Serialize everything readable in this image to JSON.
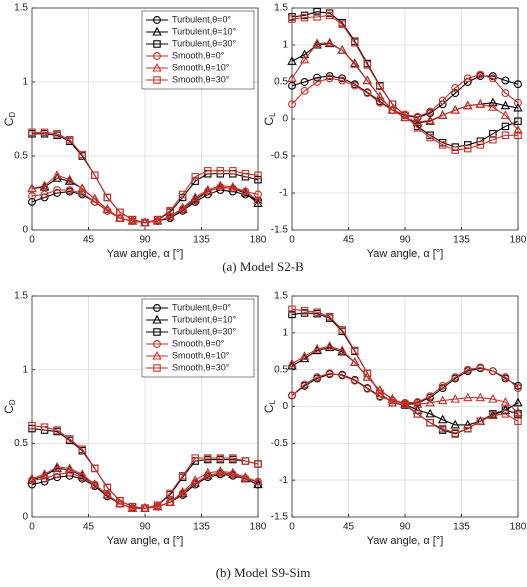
{
  "chart_data": [
    {
      "type": "line",
      "ylabel": {
        "base": "C",
        "sub": "D"
      },
      "xlabel": "Yaw angle, α [°]",
      "x": [
        0,
        10,
        20,
        30,
        40,
        50,
        60,
        70,
        80,
        90,
        100,
        110,
        120,
        130,
        140,
        150,
        160,
        170,
        180
      ],
      "xlim": [
        0,
        180
      ],
      "xticks": [
        0,
        45,
        90,
        135,
        180
      ],
      "ylim": [
        0,
        1.5
      ],
      "yticks": [
        0,
        0.5,
        1,
        1.5
      ],
      "grid": true,
      "legend": "northeast",
      "series": [
        {
          "name": "Turbulent,θ=0°",
          "color": "#000000",
          "marker": "o",
          "values": [
            0.19,
            0.22,
            0.25,
            0.26,
            0.24,
            0.19,
            0.13,
            0.08,
            0.06,
            0.05,
            0.06,
            0.08,
            0.13,
            0.19,
            0.24,
            0.27,
            0.26,
            0.24,
            0.2
          ]
        },
        {
          "name": "Turbulent,θ=10°",
          "color": "#000000",
          "marker": "^",
          "values": [
            0.28,
            0.29,
            0.35,
            0.33,
            0.28,
            0.21,
            0.14,
            0.08,
            0.06,
            0.05,
            0.06,
            0.09,
            0.14,
            0.21,
            0.26,
            0.29,
            0.28,
            0.25,
            0.18
          ]
        },
        {
          "name": "Turbulent,θ=30°",
          "color": "#000000",
          "marker": "s",
          "values": [
            0.65,
            0.65,
            0.64,
            0.6,
            0.5,
            0.37,
            0.22,
            0.12,
            0.07,
            0.05,
            0.07,
            0.12,
            0.22,
            0.33,
            0.38,
            0.38,
            0.38,
            0.36,
            0.34
          ]
        },
        {
          "name": "Smooth,θ=0°",
          "color": "#c8322a",
          "marker": "o",
          "values": [
            0.23,
            0.24,
            0.27,
            0.27,
            0.25,
            0.19,
            0.13,
            0.08,
            0.06,
            0.05,
            0.06,
            0.09,
            0.14,
            0.2,
            0.26,
            0.29,
            0.28,
            0.26,
            0.24
          ]
        },
        {
          "name": "Smooth,θ=10°",
          "color": "#c8322a",
          "marker": "^",
          "values": [
            0.28,
            0.3,
            0.37,
            0.34,
            0.28,
            0.21,
            0.14,
            0.08,
            0.06,
            0.05,
            0.06,
            0.09,
            0.15,
            0.22,
            0.27,
            0.3,
            0.29,
            0.26,
            0.2
          ]
        },
        {
          "name": "Smooth,θ=30°",
          "color": "#c8322a",
          "marker": "s",
          "values": [
            0.66,
            0.66,
            0.65,
            0.61,
            0.51,
            0.37,
            0.22,
            0.12,
            0.07,
            0.05,
            0.07,
            0.13,
            0.24,
            0.36,
            0.4,
            0.4,
            0.4,
            0.38,
            0.37
          ]
        }
      ]
    },
    {
      "type": "line",
      "ylabel": {
        "base": "C",
        "sub": "L"
      },
      "xlabel": "Yaw angle, α [°]",
      "x": [
        0,
        10,
        20,
        30,
        40,
        50,
        60,
        70,
        80,
        90,
        100,
        110,
        120,
        130,
        140,
        150,
        160,
        170,
        180
      ],
      "xlim": [
        0,
        180
      ],
      "xticks": [
        0,
        45,
        90,
        135,
        180
      ],
      "ylim": [
        -1.5,
        1.5
      ],
      "yticks": [
        -1.5,
        -1,
        -0.5,
        0,
        0.5,
        1,
        1.5
      ],
      "grid": true,
      "series": [
        {
          "color": "#000000",
          "marker": "o",
          "values": [
            0.45,
            0.5,
            0.56,
            0.58,
            0.55,
            0.47,
            0.36,
            0.24,
            0.12,
            0.05,
            0.02,
            0.08,
            0.2,
            0.35,
            0.5,
            0.58,
            0.58,
            0.52,
            0.47
          ]
        },
        {
          "color": "#000000",
          "marker": "^",
          "values": [
            0.78,
            0.87,
            1.0,
            1.02,
            0.93,
            0.75,
            0.52,
            0.3,
            0.12,
            0.02,
            -0.05,
            -0.03,
            0.05,
            0.12,
            0.18,
            0.2,
            0.22,
            0.18,
            0.15
          ]
        },
        {
          "color": "#000000",
          "marker": "s",
          "values": [
            1.38,
            1.4,
            1.45,
            1.43,
            1.3,
            1.05,
            0.75,
            0.45,
            0.2,
            0.05,
            -0.1,
            -0.22,
            -0.32,
            -0.38,
            -0.35,
            -0.3,
            -0.2,
            -0.1,
            -0.03
          ]
        },
        {
          "color": "#c8322a",
          "marker": "o",
          "values": [
            0.2,
            0.38,
            0.5,
            0.55,
            0.52,
            0.45,
            0.35,
            0.22,
            0.12,
            0.06,
            0.03,
            0.1,
            0.25,
            0.42,
            0.55,
            0.6,
            0.55,
            0.35,
            0.22
          ]
        },
        {
          "color": "#c8322a",
          "marker": "^",
          "values": [
            0.55,
            0.8,
            1.02,
            1.03,
            0.93,
            0.74,
            0.52,
            0.3,
            0.12,
            0.02,
            -0.04,
            -0.02,
            0.05,
            0.12,
            0.18,
            0.2,
            0.16,
            0.05,
            -0.15
          ]
        },
        {
          "color": "#c8322a",
          "marker": "s",
          "values": [
            1.35,
            1.37,
            1.38,
            1.4,
            1.28,
            1.03,
            0.73,
            0.44,
            0.2,
            0.05,
            -0.12,
            -0.25,
            -0.35,
            -0.42,
            -0.4,
            -0.35,
            -0.28,
            -0.22,
            -0.22
          ]
        }
      ]
    },
    {
      "type": "line",
      "ylabel": {
        "base": "C",
        "sub": "D"
      },
      "xlabel": "Yaw angle, α [°]",
      "x": [
        0,
        10,
        20,
        30,
        40,
        50,
        60,
        70,
        80,
        90,
        100,
        110,
        120,
        130,
        140,
        150,
        160,
        170,
        180
      ],
      "xlim": [
        0,
        180
      ],
      "xticks": [
        0,
        45,
        90,
        135,
        180
      ],
      "ylim": [
        0,
        1.5
      ],
      "yticks": [
        0,
        0.5,
        1,
        1.5
      ],
      "grid": true,
      "legend": "northeast",
      "series": [
        {
          "name": "Turbulent,θ=0°",
          "color": "#000000",
          "marker": "o",
          "values": [
            0.22,
            0.24,
            0.27,
            0.28,
            0.26,
            0.21,
            0.14,
            0.09,
            0.06,
            0.06,
            0.07,
            0.1,
            0.15,
            0.22,
            0.27,
            0.29,
            0.28,
            0.26,
            0.22
          ]
        },
        {
          "name": "Turbulent,θ=10°",
          "color": "#000000",
          "marker": "^",
          "values": [
            0.25,
            0.28,
            0.33,
            0.32,
            0.28,
            0.22,
            0.15,
            0.09,
            0.06,
            0.06,
            0.07,
            0.1,
            0.16,
            0.23,
            0.28,
            0.3,
            0.29,
            0.26,
            0.22
          ]
        },
        {
          "name": "Turbulent,θ=30°",
          "color": "#000000",
          "marker": "s",
          "values": [
            0.6,
            0.59,
            0.58,
            0.52,
            0.45,
            0.33,
            0.2,
            0.11,
            0.07,
            0.06,
            0.08,
            0.15,
            0.27,
            0.38,
            0.39,
            0.39,
            0.39,
            0.38,
            0.36
          ]
        },
        {
          "name": "Smooth,θ=0°",
          "color": "#c8322a",
          "marker": "o",
          "values": [
            0.25,
            0.26,
            0.29,
            0.3,
            0.27,
            0.22,
            0.15,
            0.09,
            0.06,
            0.06,
            0.07,
            0.1,
            0.16,
            0.23,
            0.28,
            0.3,
            0.29,
            0.26,
            0.24
          ]
        },
        {
          "name": "Smooth,θ=10°",
          "color": "#c8322a",
          "marker": "^",
          "values": [
            0.26,
            0.29,
            0.34,
            0.33,
            0.29,
            0.22,
            0.15,
            0.09,
            0.06,
            0.06,
            0.07,
            0.1,
            0.17,
            0.25,
            0.3,
            0.31,
            0.3,
            0.27,
            0.24
          ]
        },
        {
          "name": "Smooth,θ=30°",
          "color": "#c8322a",
          "marker": "s",
          "values": [
            0.62,
            0.61,
            0.59,
            0.53,
            0.46,
            0.33,
            0.2,
            0.11,
            0.07,
            0.06,
            0.08,
            0.16,
            0.28,
            0.4,
            0.4,
            0.4,
            0.4,
            0.38,
            0.36
          ]
        }
      ]
    },
    {
      "type": "line",
      "ylabel": {
        "base": "C",
        "sub": "L"
      },
      "xlabel": "Yaw angle, α [°]",
      "x": [
        0,
        10,
        20,
        30,
        40,
        50,
        60,
        70,
        80,
        90,
        100,
        110,
        120,
        130,
        140,
        150,
        160,
        170,
        180
      ],
      "xlim": [
        0,
        180
      ],
      "xticks": [
        0,
        45,
        90,
        135,
        180
      ],
      "ylim": [
        -1.5,
        1.5
      ],
      "yticks": [
        -1.5,
        -1,
        -0.5,
        0,
        0.5,
        1,
        1.5
      ],
      "grid": true,
      "series": [
        {
          "color": "#000000",
          "marker": "o",
          "values": [
            0.15,
            0.28,
            0.38,
            0.44,
            0.43,
            0.36,
            0.25,
            0.14,
            0.08,
            0.04,
            0.05,
            0.12,
            0.25,
            0.38,
            0.48,
            0.52,
            0.48,
            0.38,
            0.28
          ]
        },
        {
          "color": "#000000",
          "marker": "^",
          "values": [
            0.55,
            0.65,
            0.76,
            0.8,
            0.74,
            0.6,
            0.4,
            0.22,
            0.1,
            0.03,
            -0.05,
            -0.1,
            -0.18,
            -0.25,
            -0.25,
            -0.2,
            -0.12,
            -0.05,
            0.05
          ]
        },
        {
          "color": "#000000",
          "marker": "s",
          "values": [
            1.25,
            1.27,
            1.26,
            1.2,
            1.02,
            0.75,
            0.45,
            0.18,
            0.05,
            0.02,
            -0.1,
            -0.22,
            -0.32,
            -0.37,
            -0.3,
            -0.2,
            -0.1,
            -0.05,
            -0.1
          ]
        },
        {
          "color": "#c8322a",
          "marker": "o",
          "values": [
            0.15,
            0.3,
            0.4,
            0.45,
            0.42,
            0.35,
            0.24,
            0.13,
            0.08,
            0.05,
            0.06,
            0.14,
            0.28,
            0.4,
            0.5,
            0.53,
            0.48,
            0.4,
            0.25
          ]
        },
        {
          "color": "#c8322a",
          "marker": "^",
          "values": [
            0.58,
            0.68,
            0.78,
            0.82,
            0.76,
            0.6,
            0.4,
            0.22,
            0.1,
            0.03,
            0.03,
            0.05,
            0.08,
            0.1,
            0.12,
            0.12,
            0.1,
            0.06,
            -0.08
          ]
        },
        {
          "color": "#c8322a",
          "marker": "s",
          "values": [
            1.32,
            1.3,
            1.28,
            1.22,
            1.04,
            0.76,
            0.45,
            0.18,
            0.05,
            0.03,
            -0.1,
            -0.22,
            -0.3,
            -0.36,
            -0.3,
            -0.2,
            -0.12,
            -0.1,
            -0.2
          ]
        }
      ]
    }
  ],
  "captions": [
    "(a) Model S2-B",
    "(b) Model S9-Sim"
  ]
}
